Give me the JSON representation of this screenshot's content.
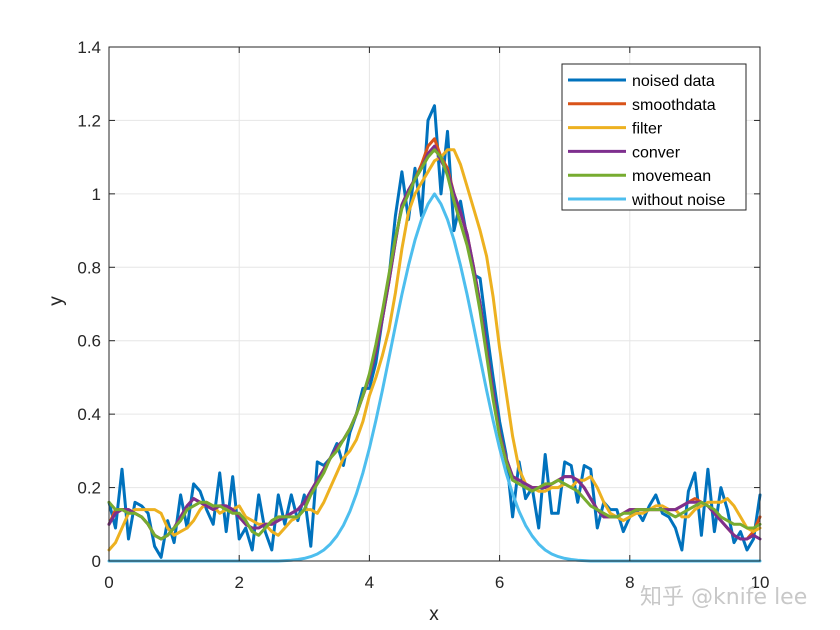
{
  "chart_data": {
    "type": "line",
    "title": "",
    "xlabel": "x",
    "ylabel": "y",
    "xlim": [
      0,
      10
    ],
    "ylim": [
      0,
      1.4
    ],
    "xticks": [
      "0",
      "2",
      "4",
      "6",
      "8",
      "10"
    ],
    "yticks": [
      "0",
      "0.2",
      "0.4",
      "0.6",
      "0.8",
      "1",
      "1.2",
      "1.4"
    ],
    "grid": true,
    "legend_position": "top-right",
    "x": [
      0,
      0.1,
      0.2,
      0.3,
      0.4,
      0.5,
      0.6,
      0.7,
      0.8,
      0.9,
      1,
      1.1,
      1.2,
      1.3,
      1.4,
      1.5,
      1.6,
      1.7,
      1.8,
      1.9,
      2,
      2.1,
      2.2,
      2.3,
      2.4,
      2.5,
      2.6,
      2.7,
      2.8,
      2.9,
      3,
      3.1,
      3.2,
      3.3,
      3.4,
      3.5,
      3.6,
      3.7,
      3.8,
      3.9,
      4,
      4.1,
      4.2,
      4.3,
      4.4,
      4.5,
      4.6,
      4.7,
      4.8,
      4.9,
      5,
      5.1,
      5.2,
      5.3,
      5.4,
      5.5,
      5.6,
      5.7,
      5.8,
      5.9,
      6,
      6.1,
      6.2,
      6.3,
      6.4,
      6.5,
      6.6,
      6.7,
      6.8,
      6.9,
      7,
      7.1,
      7.2,
      7.3,
      7.4,
      7.5,
      7.6,
      7.7,
      7.8,
      7.9,
      8,
      8.1,
      8.2,
      8.3,
      8.4,
      8.5,
      8.6,
      8.7,
      8.8,
      8.9,
      9,
      9.1,
      9.2,
      9.3,
      9.4,
      9.5,
      9.6,
      9.7,
      9.8,
      9.9,
      10
    ],
    "series": [
      {
        "name": "noised data",
        "color": "#0072bd",
        "width": 3,
        "values": [
          0.16,
          0.09,
          0.25,
          0.06,
          0.16,
          0.15,
          0.13,
          0.04,
          0.01,
          0.11,
          0.05,
          0.18,
          0.09,
          0.21,
          0.19,
          0.14,
          0.1,
          0.24,
          0.08,
          0.23,
          0.06,
          0.09,
          0.03,
          0.18,
          0.08,
          0.03,
          0.18,
          0.1,
          0.18,
          0.11,
          0.18,
          0.04,
          0.27,
          0.26,
          0.28,
          0.32,
          0.26,
          0.35,
          0.4,
          0.47,
          0.47,
          0.54,
          0.66,
          0.77,
          0.94,
          1.06,
          0.93,
          1.07,
          0.94,
          1.2,
          1.24,
          1.0,
          1.17,
          0.9,
          0.98,
          0.88,
          0.78,
          0.77,
          0.63,
          0.5,
          0.38,
          0.29,
          0.12,
          0.27,
          0.17,
          0.2,
          0.09,
          0.29,
          0.13,
          0.13,
          0.27,
          0.26,
          0.16,
          0.26,
          0.25,
          0.09,
          0.16,
          0.14,
          0.14,
          0.08,
          0.12,
          0.14,
          0.11,
          0.15,
          0.18,
          0.13,
          0.12,
          0.09,
          0.03,
          0.19,
          0.24,
          0.07,
          0.25,
          0.08,
          0.2,
          0.14,
          0.05,
          0.08,
          0.03,
          0.06,
          0.18
        ]
      },
      {
        "name": "smoothdata",
        "color": "#d95319",
        "width": 3,
        "values": [
          0.1,
          0.14,
          0.14,
          0.14,
          0.13,
          0.12,
          0.1,
          0.07,
          0.06,
          0.07,
          0.09,
          0.12,
          0.15,
          0.17,
          0.16,
          0.15,
          0.14,
          0.15,
          0.15,
          0.14,
          0.12,
          0.1,
          0.09,
          0.09,
          0.1,
          0.1,
          0.11,
          0.12,
          0.13,
          0.14,
          0.16,
          0.19,
          0.22,
          0.25,
          0.28,
          0.31,
          0.33,
          0.36,
          0.4,
          0.45,
          0.5,
          0.57,
          0.66,
          0.76,
          0.87,
          0.97,
          1.01,
          1.04,
          1.08,
          1.13,
          1.15,
          1.1,
          1.07,
          1.0,
          0.95,
          0.89,
          0.8,
          0.7,
          0.58,
          0.46,
          0.35,
          0.28,
          0.23,
          0.22,
          0.21,
          0.2,
          0.2,
          0.2,
          0.21,
          0.22,
          0.23,
          0.23,
          0.22,
          0.2,
          0.17,
          0.14,
          0.12,
          0.12,
          0.12,
          0.13,
          0.14,
          0.14,
          0.14,
          0.14,
          0.14,
          0.14,
          0.14,
          0.14,
          0.15,
          0.16,
          0.17,
          0.16,
          0.15,
          0.13,
          0.11,
          0.09,
          0.07,
          0.06,
          0.06,
          0.08,
          0.12
        ]
      },
      {
        "name": "filter",
        "color": "#edb120",
        "width": 3,
        "values": [
          0.03,
          0.05,
          0.09,
          0.13,
          0.14,
          0.14,
          0.14,
          0.14,
          0.13,
          0.09,
          0.07,
          0.08,
          0.09,
          0.11,
          0.14,
          0.16,
          0.15,
          0.13,
          0.14,
          0.14,
          0.15,
          0.12,
          0.11,
          0.1,
          0.1,
          0.08,
          0.07,
          0.09,
          0.11,
          0.12,
          0.14,
          0.14,
          0.13,
          0.16,
          0.2,
          0.24,
          0.28,
          0.3,
          0.33,
          0.38,
          0.45,
          0.5,
          0.56,
          0.63,
          0.73,
          0.85,
          0.95,
          1.0,
          1.03,
          1.06,
          1.09,
          1.1,
          1.12,
          1.12,
          1.08,
          1.02,
          0.96,
          0.9,
          0.83,
          0.72,
          0.58,
          0.46,
          0.34,
          0.25,
          0.21,
          0.2,
          0.19,
          0.19,
          0.2,
          0.2,
          0.21,
          0.2,
          0.22,
          0.22,
          0.23,
          0.2,
          0.16,
          0.13,
          0.12,
          0.11,
          0.12,
          0.13,
          0.13,
          0.14,
          0.15,
          0.15,
          0.14,
          0.14,
          0.12,
          0.12,
          0.14,
          0.15,
          0.16,
          0.16,
          0.16,
          0.17,
          0.15,
          0.12,
          0.09,
          0.08,
          0.09
        ]
      },
      {
        "name": "conver",
        "color": "#7e2f8e",
        "width": 3,
        "values": [
          0.1,
          0.13,
          0.14,
          0.14,
          0.13,
          0.12,
          0.1,
          0.07,
          0.06,
          0.07,
          0.09,
          0.12,
          0.15,
          0.17,
          0.16,
          0.15,
          0.14,
          0.15,
          0.15,
          0.14,
          0.12,
          0.1,
          0.09,
          0.09,
          0.1,
          0.1,
          0.11,
          0.12,
          0.13,
          0.14,
          0.16,
          0.19,
          0.22,
          0.25,
          0.28,
          0.31,
          0.33,
          0.36,
          0.4,
          0.45,
          0.5,
          0.57,
          0.66,
          0.76,
          0.87,
          0.97,
          1.01,
          1.04,
          1.07,
          1.11,
          1.13,
          1.09,
          1.06,
          1.0,
          0.95,
          0.89,
          0.8,
          0.7,
          0.58,
          0.46,
          0.35,
          0.28,
          0.23,
          0.22,
          0.21,
          0.2,
          0.2,
          0.2,
          0.21,
          0.22,
          0.23,
          0.23,
          0.22,
          0.2,
          0.17,
          0.14,
          0.12,
          0.12,
          0.12,
          0.13,
          0.14,
          0.14,
          0.14,
          0.14,
          0.14,
          0.14,
          0.14,
          0.14,
          0.15,
          0.16,
          0.16,
          0.16,
          0.15,
          0.13,
          0.11,
          0.09,
          0.07,
          0.06,
          0.06,
          0.07,
          0.06
        ]
      },
      {
        "name": "movemean",
        "color": "#77ac30",
        "width": 3,
        "values": [
          0.16,
          0.14,
          0.14,
          0.13,
          0.13,
          0.12,
          0.1,
          0.07,
          0.06,
          0.07,
          0.09,
          0.11,
          0.14,
          0.15,
          0.16,
          0.16,
          0.15,
          0.15,
          0.14,
          0.13,
          0.13,
          0.11,
          0.08,
          0.07,
          0.09,
          0.11,
          0.12,
          0.12,
          0.12,
          0.12,
          0.14,
          0.18,
          0.21,
          0.24,
          0.28,
          0.3,
          0.33,
          0.36,
          0.4,
          0.45,
          0.51,
          0.59,
          0.68,
          0.78,
          0.88,
          0.96,
          1.0,
          1.04,
          1.07,
          1.1,
          1.12,
          1.1,
          1.05,
          0.98,
          0.92,
          0.86,
          0.78,
          0.68,
          0.56,
          0.44,
          0.34,
          0.27,
          0.22,
          0.21,
          0.2,
          0.19,
          0.2,
          0.21,
          0.21,
          0.22,
          0.21,
          0.2,
          0.19,
          0.17,
          0.15,
          0.14,
          0.13,
          0.12,
          0.12,
          0.13,
          0.13,
          0.14,
          0.14,
          0.14,
          0.14,
          0.14,
          0.13,
          0.12,
          0.13,
          0.14,
          0.15,
          0.16,
          0.15,
          0.14,
          0.12,
          0.11,
          0.1,
          0.1,
          0.09,
          0.09,
          0.1
        ]
      },
      {
        "name": "without noise",
        "color": "#4dbeee",
        "width": 3,
        "values": [
          0,
          0,
          0,
          0,
          0,
          0,
          0,
          0,
          0,
          0,
          0,
          0,
          0,
          0,
          0,
          0,
          0,
          0,
          0,
          0,
          0,
          0,
          0,
          0,
          0,
          0,
          0,
          0.001,
          0.002,
          0.004,
          0.007,
          0.012,
          0.019,
          0.03,
          0.046,
          0.068,
          0.097,
          0.135,
          0.183,
          0.24,
          0.307,
          0.383,
          0.465,
          0.552,
          0.64,
          0.726,
          0.805,
          0.874,
          0.93,
          0.972,
          1,
          0.972,
          0.93,
          0.874,
          0.805,
          0.726,
          0.64,
          0.552,
          0.465,
          0.383,
          0.307,
          0.24,
          0.183,
          0.135,
          0.097,
          0.068,
          0.046,
          0.03,
          0.019,
          0.012,
          0.007,
          0.004,
          0.002,
          0.001,
          0,
          0,
          0,
          0,
          0,
          0,
          0,
          0,
          0,
          0,
          0,
          0,
          0,
          0,
          0,
          0,
          0,
          0,
          0,
          0,
          0,
          0,
          0,
          0,
          0,
          0,
          0
        ]
      }
    ]
  },
  "watermark": "知乎 @knife lee"
}
